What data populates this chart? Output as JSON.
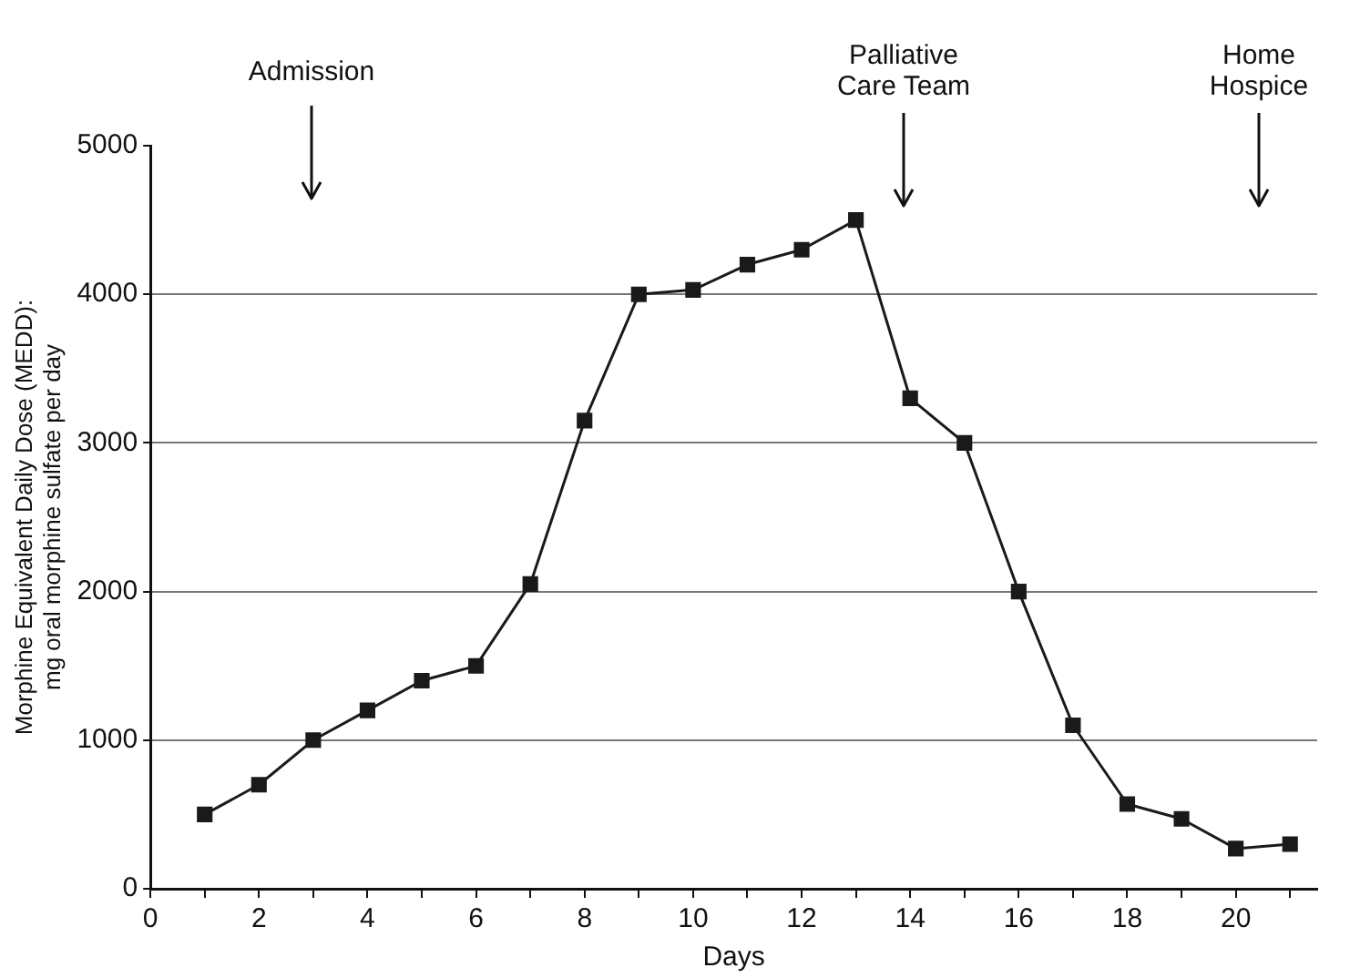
{
  "chart_data": {
    "type": "line",
    "xlabel": "Days",
    "ylabel": "Morphine Equivalent Daily Dose (MEDD): mg oral morphine sulfate per day",
    "x": [
      1,
      2,
      3,
      4,
      5,
      6,
      7,
      8,
      9,
      10,
      11,
      12,
      13,
      14,
      15,
      16,
      17,
      18,
      19,
      20,
      21
    ],
    "series": [
      {
        "color": "#1a1a1a",
        "values": [
          500,
          700,
          1000,
          1200,
          1400,
          1500,
          2050,
          3150,
          4000,
          4030,
          4200,
          4300,
          4500,
          3300,
          3000,
          2000,
          1100,
          570,
          470,
          270,
          300
        ]
      }
    ],
    "xlim": [
      0,
      21.5
    ],
    "xticks": [
      0,
      {
        "value": 1,
        "label": null
      },
      2,
      {
        "value": 3,
        "label": null
      },
      4,
      {
        "value": 5,
        "label": null
      },
      6,
      {
        "value": 7,
        "label": null
      },
      8,
      {
        "value": 9,
        "label": null
      },
      10,
      {
        "value": 11,
        "label": null
      },
      12,
      {
        "value": 13,
        "label": null
      },
      14,
      {
        "value": 15,
        "label": null
      },
      16,
      {
        "value": 17,
        "label": null
      },
      18,
      {
        "value": 19,
        "label": null
      },
      20,
      {
        "value": 21,
        "label": null
      }
    ],
    "ylim": [
      0,
      5000
    ],
    "yticks": [
      0,
      1000,
      2000,
      3000,
      4000,
      5000
    ],
    "grid": "y",
    "legend": false,
    "marker": "square",
    "line_style": "solid",
    "annotations": [
      "Admission",
      "Palliative Care Team",
      "Home Hospice"
    ]
  }
}
